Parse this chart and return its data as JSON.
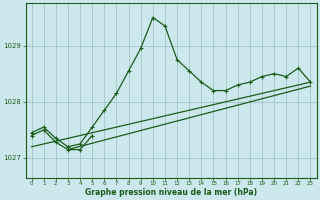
{
  "title": "Graphe pression niveau de la mer (hPa)",
  "background_color": "#cce8ed",
  "plot_bg_color": "#cce8ed",
  "line_color": "#1a5c1a",
  "grid_color": "#9bbfc4",
  "xlim": [
    -0.5,
    23.5
  ],
  "ylim": [
    1026.65,
    1029.75
  ],
  "yticks": [
    1027,
    1028,
    1029
  ],
  "xticks": [
    0,
    1,
    2,
    3,
    4,
    5,
    6,
    7,
    8,
    9,
    10,
    11,
    12,
    13,
    14,
    15,
    16,
    17,
    18,
    19,
    20,
    21,
    22,
    23
  ],
  "main_curve": {
    "x": [
      0,
      1,
      2,
      3,
      4,
      5,
      6,
      7,
      8,
      9,
      10,
      11,
      12,
      13,
      14,
      15,
      16,
      17,
      18,
      19,
      20,
      21,
      22,
      23
    ],
    "y": [
      1027.45,
      1027.55,
      1027.35,
      1027.2,
      1027.25,
      1027.55,
      1027.85,
      1028.15,
      1028.55,
      1028.95,
      1029.5,
      1029.35,
      1028.75,
      1028.55,
      1028.35,
      1028.2,
      1028.2,
      1028.3,
      1028.35,
      1028.45,
      1028.5,
      1028.45,
      1028.6,
      1028.35
    ]
  },
  "short_curve": {
    "x": [
      0,
      1,
      2,
      3,
      4,
      5
    ],
    "y": [
      1027.4,
      1027.5,
      1027.28,
      1027.15,
      1027.15,
      1027.4
    ]
  },
  "trend1": {
    "x": [
      0,
      23
    ],
    "y": [
      1027.2,
      1028.35
    ]
  },
  "trend2": {
    "x": [
      3,
      23
    ],
    "y": [
      1027.15,
      1028.28
    ]
  }
}
